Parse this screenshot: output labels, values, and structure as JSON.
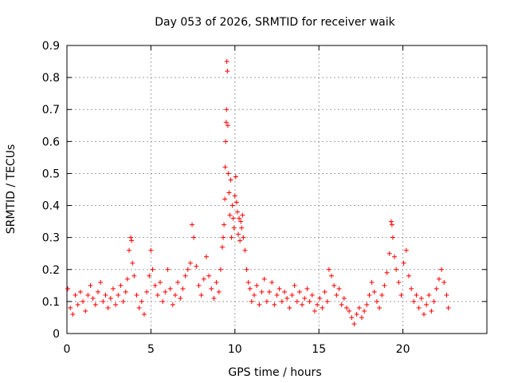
{
  "chart_data": {
    "type": "scatter",
    "title": "Day 053 of 2026, SRMTID for receiver waik",
    "xlabel": "GPS time / hours",
    "ylabel": "SRMTID / TECUs",
    "xlim": [
      0,
      25
    ],
    "ylim": [
      0,
      0.9
    ],
    "xticks": [
      0,
      5,
      10,
      15,
      20
    ],
    "xtick_labels": [
      "0",
      "5",
      "10",
      "15",
      "20"
    ],
    "yticks": [
      0,
      0.1,
      0.2,
      0.3,
      0.4,
      0.5,
      0.6,
      0.7,
      0.8,
      0.9
    ],
    "ytick_labels": [
      "0",
      "0.1",
      "0.2",
      "0.3",
      "0.4",
      "0.5",
      "0.6",
      "0.7",
      "0.8",
      "0.9"
    ],
    "grid": true,
    "marker": "plus",
    "color": "#ff0000",
    "series": [
      {
        "name": "SRMTID",
        "x": [
          0.05,
          0.2,
          0.35,
          0.5,
          0.65,
          0.8,
          0.95,
          1.1,
          1.25,
          1.4,
          1.55,
          1.7,
          1.85,
          2.0,
          2.15,
          2.3,
          2.45,
          2.6,
          2.75,
          2.9,
          3.05,
          3.2,
          3.35,
          3.5,
          3.6,
          3.7,
          3.8,
          3.85,
          3.9,
          4.0,
          4.15,
          4.3,
          4.45,
          4.6,
          4.75,
          4.9,
          5.0,
          5.1,
          5.25,
          5.4,
          5.55,
          5.7,
          5.85,
          6.0,
          6.15,
          6.3,
          6.45,
          6.6,
          6.75,
          6.9,
          7.05,
          7.2,
          7.35,
          7.45,
          7.55,
          7.7,
          7.85,
          8.0,
          8.15,
          8.3,
          8.45,
          8.6,
          8.75,
          8.9,
          9.05,
          9.15,
          9.25,
          9.3,
          9.35,
          9.4,
          9.42,
          9.45,
          9.48,
          9.5,
          9.52,
          9.55,
          9.58,
          9.6,
          9.65,
          9.7,
          9.75,
          9.8,
          9.85,
          9.9,
          9.95,
          10.0,
          10.05,
          10.1,
          10.15,
          10.2,
          10.25,
          10.3,
          10.35,
          10.4,
          10.45,
          10.5,
          10.6,
          10.7,
          10.8,
          10.9,
          11.0,
          11.15,
          11.3,
          11.45,
          11.6,
          11.75,
          11.9,
          12.05,
          12.2,
          12.35,
          12.5,
          12.65,
          12.8,
          12.95,
          13.1,
          13.25,
          13.4,
          13.55,
          13.7,
          13.85,
          14.0,
          14.15,
          14.3,
          14.45,
          14.6,
          14.75,
          14.9,
          15.05,
          15.2,
          15.35,
          15.5,
          15.6,
          15.75,
          15.9,
          16.05,
          16.2,
          16.35,
          16.5,
          16.65,
          16.8,
          16.95,
          17.1,
          17.25,
          17.4,
          17.55,
          17.7,
          17.85,
          18.0,
          18.15,
          18.3,
          18.45,
          18.6,
          18.75,
          18.9,
          19.05,
          19.2,
          19.3,
          19.35,
          19.4,
          19.5,
          19.6,
          19.75,
          19.9,
          20.05,
          20.2,
          20.35,
          20.5,
          20.65,
          20.8,
          20.95,
          21.1,
          21.25,
          21.4,
          21.55,
          21.7,
          21.85,
          22.0,
          22.15,
          22.3,
          22.45,
          22.6,
          22.7
        ],
        "y": [
          0.14,
          0.08,
          0.06,
          0.12,
          0.09,
          0.13,
          0.1,
          0.07,
          0.12,
          0.15,
          0.11,
          0.09,
          0.13,
          0.16,
          0.1,
          0.12,
          0.08,
          0.11,
          0.14,
          0.09,
          0.12,
          0.15,
          0.1,
          0.13,
          0.17,
          0.26,
          0.3,
          0.29,
          0.22,
          0.18,
          0.12,
          0.08,
          0.1,
          0.06,
          0.13,
          0.18,
          0.26,
          0.2,
          0.15,
          0.12,
          0.16,
          0.1,
          0.13,
          0.2,
          0.14,
          0.09,
          0.12,
          0.16,
          0.11,
          0.14,
          0.18,
          0.2,
          0.22,
          0.34,
          0.3,
          0.21,
          0.15,
          0.12,
          0.17,
          0.24,
          0.18,
          0.14,
          0.11,
          0.16,
          0.13,
          0.2,
          0.27,
          0.3,
          0.34,
          0.42,
          0.52,
          0.6,
          0.66,
          0.7,
          0.85,
          0.82,
          0.65,
          0.5,
          0.44,
          0.37,
          0.48,
          0.3,
          0.4,
          0.36,
          0.33,
          0.43,
          0.49,
          0.41,
          0.38,
          0.31,
          0.36,
          0.29,
          0.35,
          0.33,
          0.37,
          0.3,
          0.26,
          0.2,
          0.16,
          0.14,
          0.1,
          0.12,
          0.15,
          0.09,
          0.13,
          0.17,
          0.1,
          0.13,
          0.16,
          0.09,
          0.12,
          0.14,
          0.1,
          0.13,
          0.11,
          0.08,
          0.12,
          0.15,
          0.1,
          0.13,
          0.09,
          0.11,
          0.14,
          0.1,
          0.12,
          0.07,
          0.09,
          0.11,
          0.08,
          0.13,
          0.1,
          0.2,
          0.18,
          0.15,
          0.12,
          0.14,
          0.09,
          0.11,
          0.08,
          0.07,
          0.05,
          0.03,
          0.06,
          0.08,
          0.05,
          0.07,
          0.09,
          0.12,
          0.16,
          0.13,
          0.1,
          0.08,
          0.12,
          0.15,
          0.19,
          0.25,
          0.35,
          0.34,
          0.3,
          0.24,
          0.2,
          0.16,
          0.12,
          0.22,
          0.26,
          0.18,
          0.14,
          0.1,
          0.12,
          0.08,
          0.11,
          0.06,
          0.09,
          0.12,
          0.07,
          0.1,
          0.14,
          0.17,
          0.2,
          0.16,
          0.12,
          0.08
        ]
      }
    ]
  }
}
